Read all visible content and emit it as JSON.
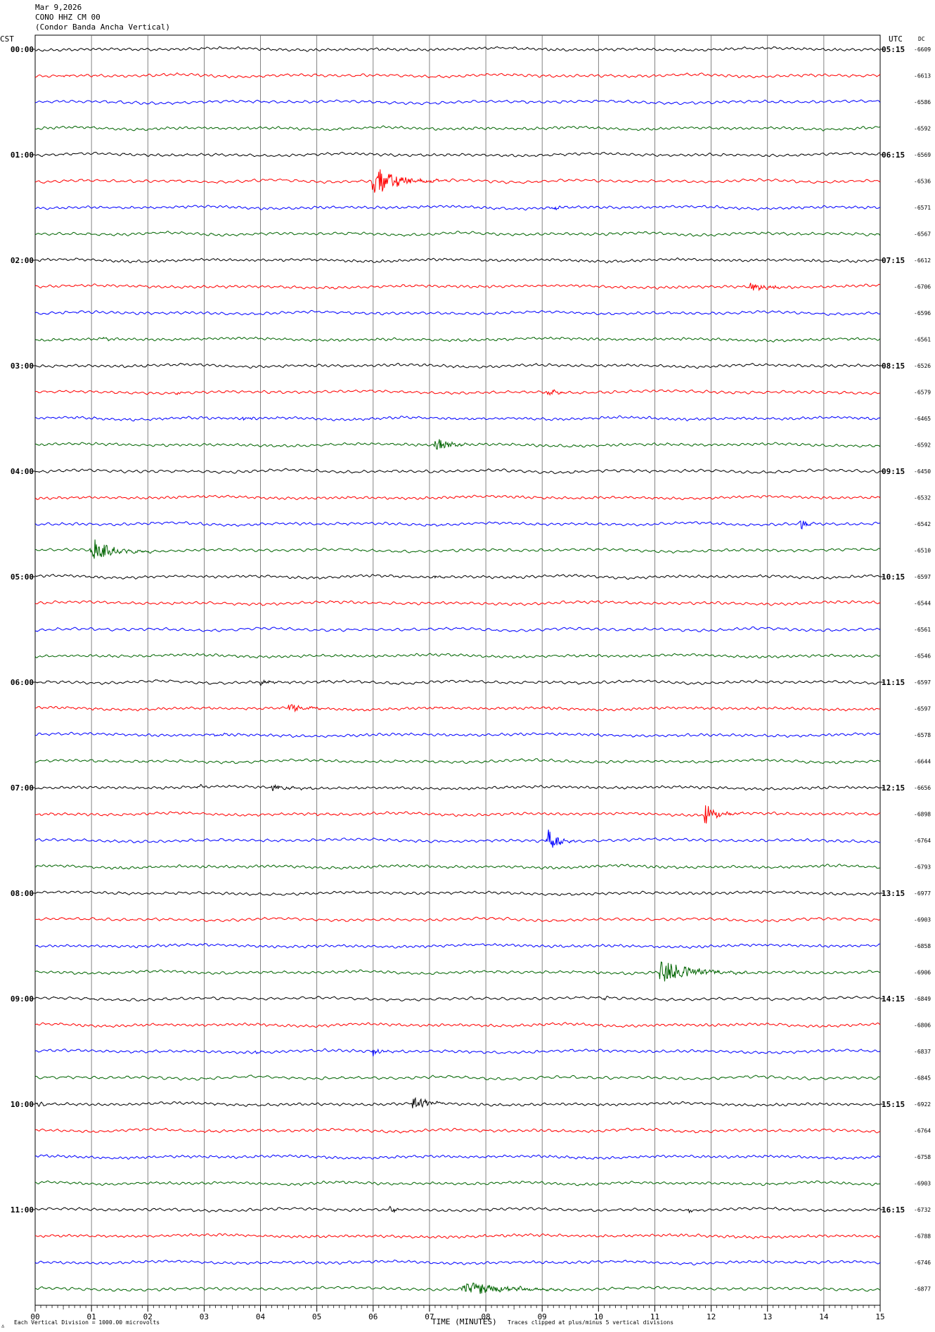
{
  "header": {
    "date": "Mar 9,2026",
    "station": "CONO HHZ CM 00",
    "description": "(Condor Banda Ancha Vertical)"
  },
  "corner_labels": {
    "left": "CST",
    "right": "UTC",
    "dc": "DC"
  },
  "footer": {
    "scale_note": "Each Vertical Division = 1000.00 microvolts",
    "clip_note": "Traces clipped at plus/minus 5 vertical divisions",
    "xlabel": "TIME (MINUTES)"
  },
  "colors": {
    "cycle": [
      "#000000",
      "#ff0000",
      "#0000ff",
      "#006400"
    ],
    "grid": "#666666",
    "axis": "#000000"
  },
  "chart_data": {
    "type": "line",
    "title": "",
    "xlabel": "TIME (MINUTES)",
    "xlim": [
      0,
      15
    ],
    "x_ticks": [
      "00",
      "01",
      "02",
      "03",
      "04",
      "05",
      "06",
      "07",
      "08",
      "09",
      "10",
      "11",
      "12",
      "13",
      "14",
      "15"
    ],
    "trace_count": 48,
    "minutes_per_trace": 15,
    "left_hour_labels": [
      "00:00",
      "01:00",
      "02:00",
      "03:00",
      "04:00",
      "05:00",
      "06:00",
      "07:00",
      "08:00",
      "09:00",
      "10:00",
      "11:00"
    ],
    "right_hour_labels": [
      "05:15",
      "06:15",
      "07:15",
      "08:15",
      "09:15",
      "10:15",
      "11:15",
      "12:15",
      "13:15",
      "14:15",
      "15:15",
      "16:15"
    ],
    "dc_offsets": [
      -6609,
      -6613,
      -6586,
      -6592,
      -6569,
      -6536,
      -6571,
      -6567,
      -6612,
      -6706,
      -6596,
      -6561,
      -6526,
      -6579,
      -6465,
      -6592,
      -6450,
      -6532,
      -6542,
      -6510,
      -6597,
      -6544,
      -6561,
      -6546,
      -6597,
      -6597,
      -6578,
      -6644,
      -6656,
      -6898,
      -6764,
      -6793,
      -6977,
      -6903,
      -6858,
      -6906,
      -6849,
      -6806,
      -6837,
      -6845,
      -6922,
      -6764,
      -6758,
      -6903,
      -6732,
      -6788,
      -6746,
      -6877
    ],
    "events": [
      {
        "trace": 1,
        "minute": 0.5,
        "amp": 0.3,
        "dur": 0.3
      },
      {
        "trace": 5,
        "minute": 6.0,
        "amp": 3.5,
        "dur": 1.0
      },
      {
        "trace": 6,
        "minute": 9.2,
        "amp": 0.5,
        "dur": 0.3
      },
      {
        "trace": 9,
        "minute": 12.7,
        "amp": 0.9,
        "dur": 0.8
      },
      {
        "trace": 11,
        "minute": 1.2,
        "amp": 0.4,
        "dur": 0.3
      },
      {
        "trace": 13,
        "minute": 2.5,
        "amp": 0.3,
        "dur": 0.3
      },
      {
        "trace": 13,
        "minute": 9.1,
        "amp": 0.5,
        "dur": 0.6
      },
      {
        "trace": 14,
        "minute": 3.7,
        "amp": 0.4,
        "dur": 0.3
      },
      {
        "trace": 15,
        "minute": 7.1,
        "amp": 1.5,
        "dur": 0.6
      },
      {
        "trace": 18,
        "minute": 13.6,
        "amp": 1.8,
        "dur": 0.2
      },
      {
        "trace": 19,
        "minute": 1.0,
        "amp": 2.7,
        "dur": 0.9
      },
      {
        "trace": 20,
        "minute": 7.1,
        "amp": 0.3,
        "dur": 0.3
      },
      {
        "trace": 24,
        "minute": 4.0,
        "amp": 0.6,
        "dur": 0.6
      },
      {
        "trace": 24,
        "minute": 5.1,
        "amp": 0.3,
        "dur": 0.3
      },
      {
        "trace": 25,
        "minute": 4.5,
        "amp": 1.2,
        "dur": 0.6
      },
      {
        "trace": 26,
        "minute": 3.2,
        "amp": 0.4,
        "dur": 0.3
      },
      {
        "trace": 28,
        "minute": 2.9,
        "amp": 0.3,
        "dur": 0.3
      },
      {
        "trace": 28,
        "minute": 4.2,
        "amp": 0.5,
        "dur": 0.9
      },
      {
        "trace": 29,
        "minute": 11.9,
        "amp": 2.5,
        "dur": 0.5
      },
      {
        "trace": 30,
        "minute": 9.1,
        "amp": 2.5,
        "dur": 0.5
      },
      {
        "trace": 35,
        "minute": 11.1,
        "amp": 2.6,
        "dur": 1.3
      },
      {
        "trace": 36,
        "minute": 10.1,
        "amp": 0.5,
        "dur": 0.2
      },
      {
        "trace": 38,
        "minute": 6.0,
        "amp": 1.4,
        "dur": 0.3
      },
      {
        "trace": 38,
        "minute": 3.9,
        "amp": 0.3,
        "dur": 0.3
      },
      {
        "trace": 40,
        "minute": 6.7,
        "amp": 1.8,
        "dur": 0.6
      },
      {
        "trace": 40,
        "minute": 0.05,
        "amp": 0.5,
        "dur": 0.3
      },
      {
        "trace": 44,
        "minute": 6.3,
        "amp": 0.6,
        "dur": 0.3
      },
      {
        "trace": 44,
        "minute": 11.6,
        "amp": 0.4,
        "dur": 0.3
      },
      {
        "trace": 47,
        "minute": 7.6,
        "amp": 1.5,
        "dur": 1.8
      }
    ]
  }
}
